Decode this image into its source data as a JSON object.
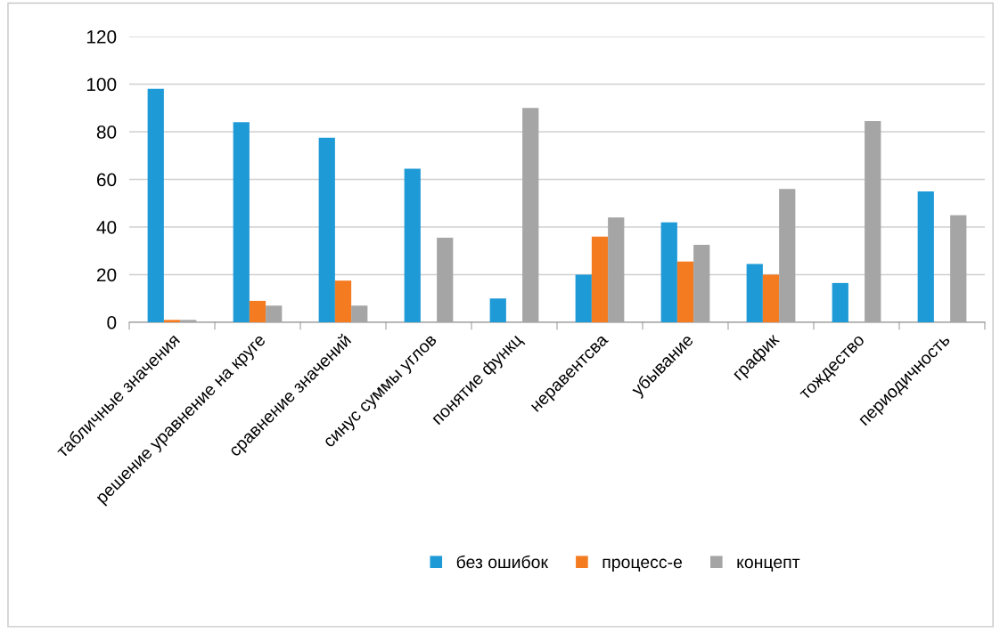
{
  "chart_data": {
    "type": "bar",
    "categories": [
      "табличные значения",
      "решение уравнение на круге",
      "сравнение значений",
      "синус суммы углов",
      "понятие функц",
      "неравентсва",
      "убывание",
      "график",
      "тождество",
      "периодичность"
    ],
    "series": [
      {
        "name": "без ошибок",
        "color": "#1e9ad6",
        "values": [
          98,
          84,
          77.5,
          64.5,
          10,
          20,
          42,
          24.5,
          16.5,
          55
        ]
      },
      {
        "name": "процесс-е",
        "color": "#f47b20",
        "values": [
          1,
          9,
          17.5,
          0,
          0,
          36,
          25.5,
          20,
          0,
          0
        ]
      },
      {
        "name": "концепт",
        "color": "#a5a5a5",
        "values": [
          1,
          7,
          7,
          35.5,
          90,
          44,
          32.5,
          56,
          84.5,
          45
        ]
      }
    ],
    "ylim": [
      0,
      120
    ],
    "yticks": [
      0,
      20,
      40,
      60,
      80,
      100,
      120
    ],
    "grid": "y",
    "legend": "bottom"
  }
}
